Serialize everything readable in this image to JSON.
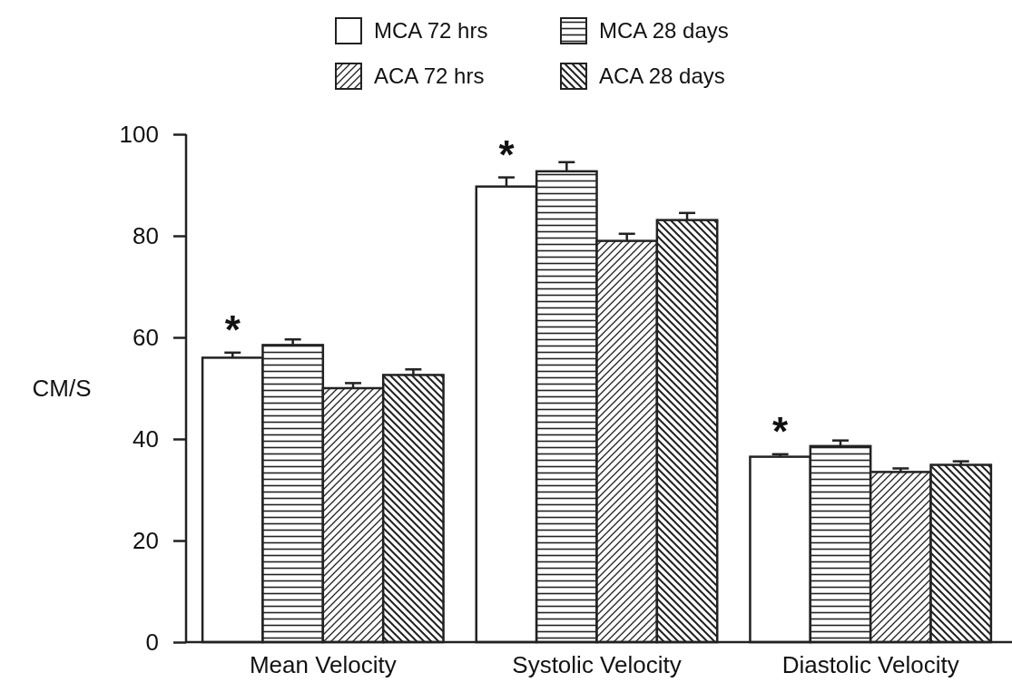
{
  "chart_data": {
    "type": "bar",
    "categories": [
      "Mean Velocity",
      "Systolic Velocity",
      "Diastolic Velocity"
    ],
    "ylabel": "CM/S",
    "ylim": [
      0,
      100
    ],
    "yticks": [
      0,
      20,
      40,
      60,
      80,
      100
    ],
    "legend": "top",
    "grid": false,
    "series": [
      {
        "name": "MCA 72 hrs",
        "color": "#ffffff",
        "values": [
          56,
          89.7,
          36.5
        ],
        "errors": [
          [
            56,
            57
          ],
          [
            89.7,
            91.5
          ],
          [
            36.5,
            37
          ]
        ]
      },
      {
        "name": "MCA 28 days",
        "color": "#222222",
        "values": [
          58.5,
          92.7,
          38.6
        ],
        "errors": [
          [
            58.5,
            59.6
          ],
          [
            92.7,
            94.5
          ],
          [
            38.6,
            39.7
          ]
        ]
      },
      {
        "name": "ACA 72 hrs",
        "color": "#222222",
        "values": [
          50,
          79,
          33.5
        ],
        "errors": [
          [
            50,
            51
          ],
          [
            79,
            80.4
          ],
          [
            33.5,
            34.2
          ]
        ]
      },
      {
        "name": "ACA 28 days",
        "color": "#222222",
        "values": [
          52.6,
          83.1,
          34.9
        ],
        "errors": [
          [
            52.6,
            53.7
          ],
          [
            83.1,
            84.5
          ],
          [
            34.9,
            35.6
          ]
        ]
      }
    ],
    "annotations": [
      {
        "text": "*",
        "x": "Mean Velocity",
        "y": 57
      },
      {
        "text": "*",
        "x": "Systolic Velocity",
        "y": 91.5
      },
      {
        "text": "*",
        "x": "Diastolic Velocity",
        "y": 37
      }
    ]
  }
}
